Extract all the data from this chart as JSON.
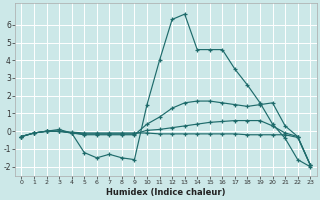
{
  "xlabel": "Humidex (Indice chaleur)",
  "bg_color": "#cce8e8",
  "grid_color": "#ffffff",
  "line_color": "#1e6b6b",
  "xlim": [
    -0.5,
    23.5
  ],
  "ylim": [
    -2.5,
    7.2
  ],
  "xticks": [
    0,
    1,
    2,
    3,
    4,
    5,
    6,
    7,
    8,
    9,
    10,
    11,
    12,
    13,
    14,
    15,
    16,
    17,
    18,
    19,
    20,
    21,
    22,
    23
  ],
  "yticks": [
    -2,
    -1,
    0,
    1,
    2,
    3,
    4,
    5,
    6
  ],
  "line1_x": [
    0,
    1,
    2,
    3,
    4,
    5,
    6,
    7,
    8,
    9,
    10,
    11,
    12,
    13,
    14,
    15,
    16,
    17,
    18,
    19,
    20,
    21,
    22,
    23
  ],
  "line1_y": [
    -0.3,
    -0.1,
    0.0,
    0.1,
    -0.1,
    -1.2,
    -1.5,
    -1.3,
    -1.5,
    -1.6,
    1.5,
    4.0,
    6.3,
    6.6,
    4.6,
    4.6,
    4.6,
    3.5,
    2.6,
    1.6,
    0.4,
    -0.4,
    -1.6,
    -2.0
  ],
  "line2_x": [
    0,
    1,
    2,
    3,
    4,
    5,
    6,
    7,
    8,
    9,
    10,
    11,
    12,
    13,
    14,
    15,
    16,
    17,
    18,
    19,
    20,
    21,
    22,
    23
  ],
  "line2_y": [
    -0.3,
    -0.1,
    0.0,
    0.0,
    -0.1,
    -0.2,
    -0.2,
    -0.2,
    -0.2,
    -0.2,
    0.4,
    0.8,
    1.3,
    1.6,
    1.7,
    1.7,
    1.6,
    1.5,
    1.4,
    1.5,
    1.6,
    0.3,
    -0.3,
    -1.9
  ],
  "line3_x": [
    0,
    1,
    2,
    3,
    4,
    5,
    6,
    7,
    8,
    9,
    10,
    11,
    12,
    13,
    14,
    15,
    16,
    17,
    18,
    19,
    20,
    21,
    22,
    23
  ],
  "line3_y": [
    -0.3,
    -0.1,
    0.0,
    0.0,
    -0.1,
    -0.15,
    -0.15,
    -0.15,
    -0.15,
    -0.15,
    0.05,
    0.1,
    0.2,
    0.3,
    0.4,
    0.5,
    0.55,
    0.6,
    0.6,
    0.6,
    0.3,
    -0.1,
    -0.3,
    -1.9
  ],
  "line4_x": [
    0,
    1,
    2,
    3,
    4,
    5,
    6,
    7,
    8,
    9,
    10,
    11,
    12,
    13,
    14,
    15,
    16,
    17,
    18,
    19,
    20,
    21,
    22,
    23
  ],
  "line4_y": [
    -0.3,
    -0.1,
    0.0,
    0.0,
    -0.05,
    -0.1,
    -0.1,
    -0.1,
    -0.1,
    -0.1,
    -0.1,
    -0.15,
    -0.15,
    -0.15,
    -0.15,
    -0.15,
    -0.15,
    -0.15,
    -0.2,
    -0.2,
    -0.2,
    -0.2,
    -0.35,
    -1.9
  ]
}
